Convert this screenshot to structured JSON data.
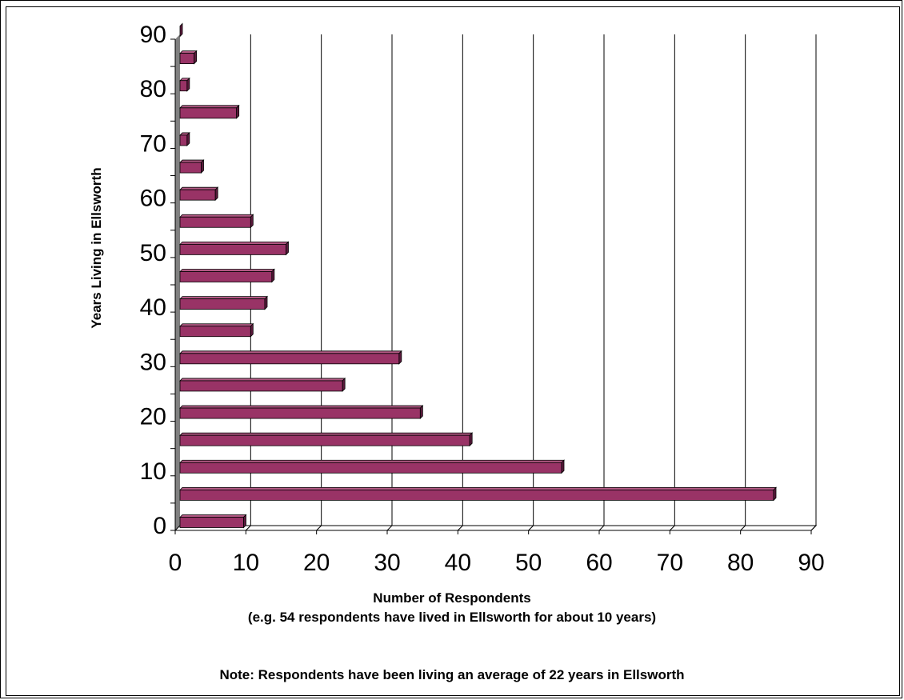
{
  "chart_data": {
    "type": "bar",
    "orientation": "horizontal",
    "ylabel": "Years Living in Ellsworth",
    "xlabel": "Number of Respondents",
    "xlabel_note": "(e.g. 54 respondents have lived in Ellsworth for about 10 years)",
    "footnote": "Note: Respondents have been living an average of 22 years in Ellsworth",
    "categories": [
      0,
      5,
      10,
      15,
      20,
      25,
      30,
      35,
      40,
      45,
      50,
      55,
      60,
      65,
      70,
      75,
      80,
      85,
      90
    ],
    "values": [
      9,
      84,
      54,
      41,
      34,
      23,
      31,
      10,
      12,
      13,
      15,
      10,
      5,
      3,
      1,
      8,
      1,
      2,
      0
    ],
    "xlim": [
      0,
      90
    ],
    "ylim": [
      0,
      90
    ],
    "xticks": [
      0,
      10,
      20,
      30,
      40,
      50,
      60,
      70,
      80,
      90
    ],
    "yticks": [
      0,
      10,
      20,
      30,
      40,
      50,
      60,
      70,
      80,
      90
    ],
    "grid": "vertical",
    "legend": "none",
    "colors": {
      "bar": "#993366",
      "bar_top": "#b35984",
      "bar_side": "#5c1a3d",
      "grid": "#000000",
      "wall": "#808080"
    }
  }
}
